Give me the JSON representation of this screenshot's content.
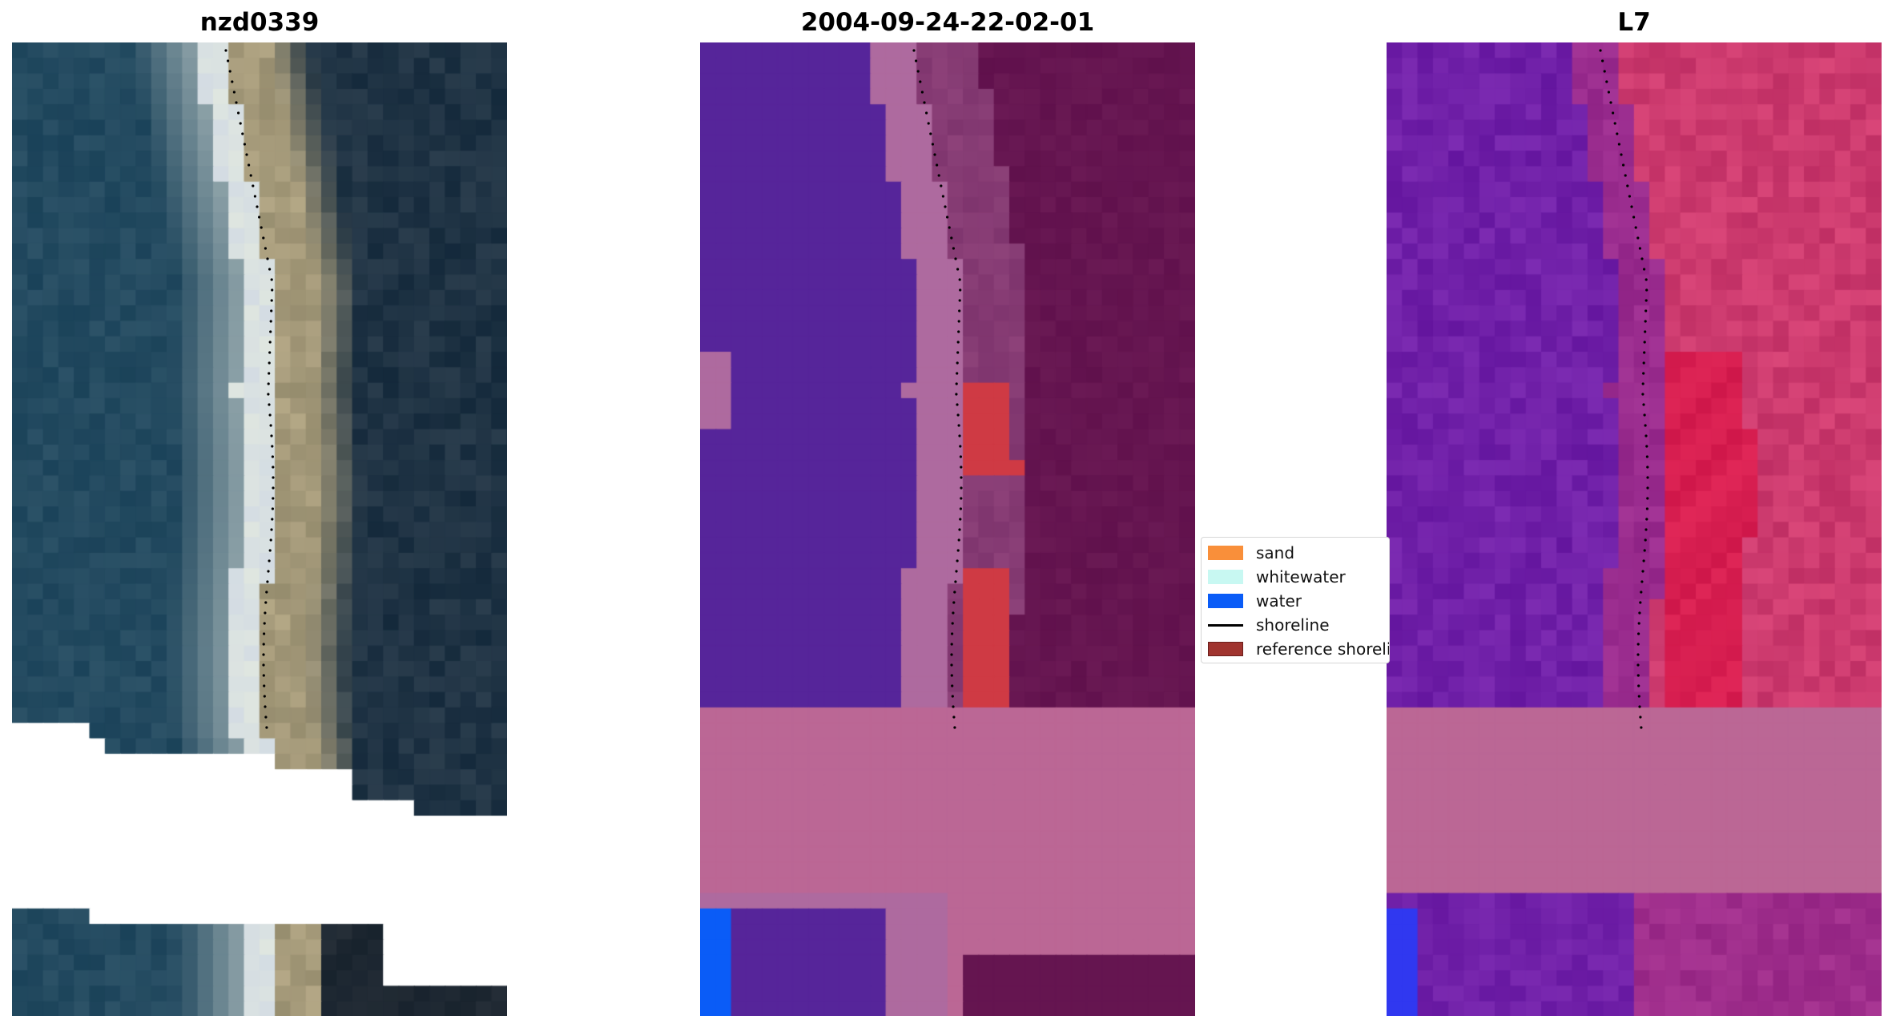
{
  "panels": [
    {
      "title": "nzd0339",
      "kind": "rgb"
    },
    {
      "title": "2004-09-24-22-02-01",
      "kind": "classified"
    },
    {
      "title": "L7",
      "kind": "index"
    }
  ],
  "legend": {
    "items": [
      {
        "label": "sand",
        "color": "#f98f3a",
        "type": "patch"
      },
      {
        "label": "whitewater",
        "color": "#c8f8f2",
        "type": "patch"
      },
      {
        "label": "water",
        "color": "#0a5cf7",
        "type": "patch"
      },
      {
        "label": "shoreline",
        "color": "#000000",
        "type": "line"
      },
      {
        "label": "reference shoreline",
        "color": "#a0342f",
        "type": "patch"
      }
    ]
  },
  "colors": {
    "background": "#ffffff",
    "rgb_water": "#234a60",
    "rgb_land": "#1f3344",
    "rgb_surf": "#dfe6e0",
    "rgb_sand": "#a59a7a",
    "class_water": "#56259a",
    "class_transition": "#ae6a9f",
    "class_nodata": "#bb6795",
    "class_land": "#651550",
    "class_reference": "#cf3a44",
    "class_water_blue": "#0a5cf7",
    "index_water": "#7020a8",
    "index_land": "#cc3a6e",
    "index_nodata": "#bb6795",
    "index_blue": "#3038f0"
  }
}
